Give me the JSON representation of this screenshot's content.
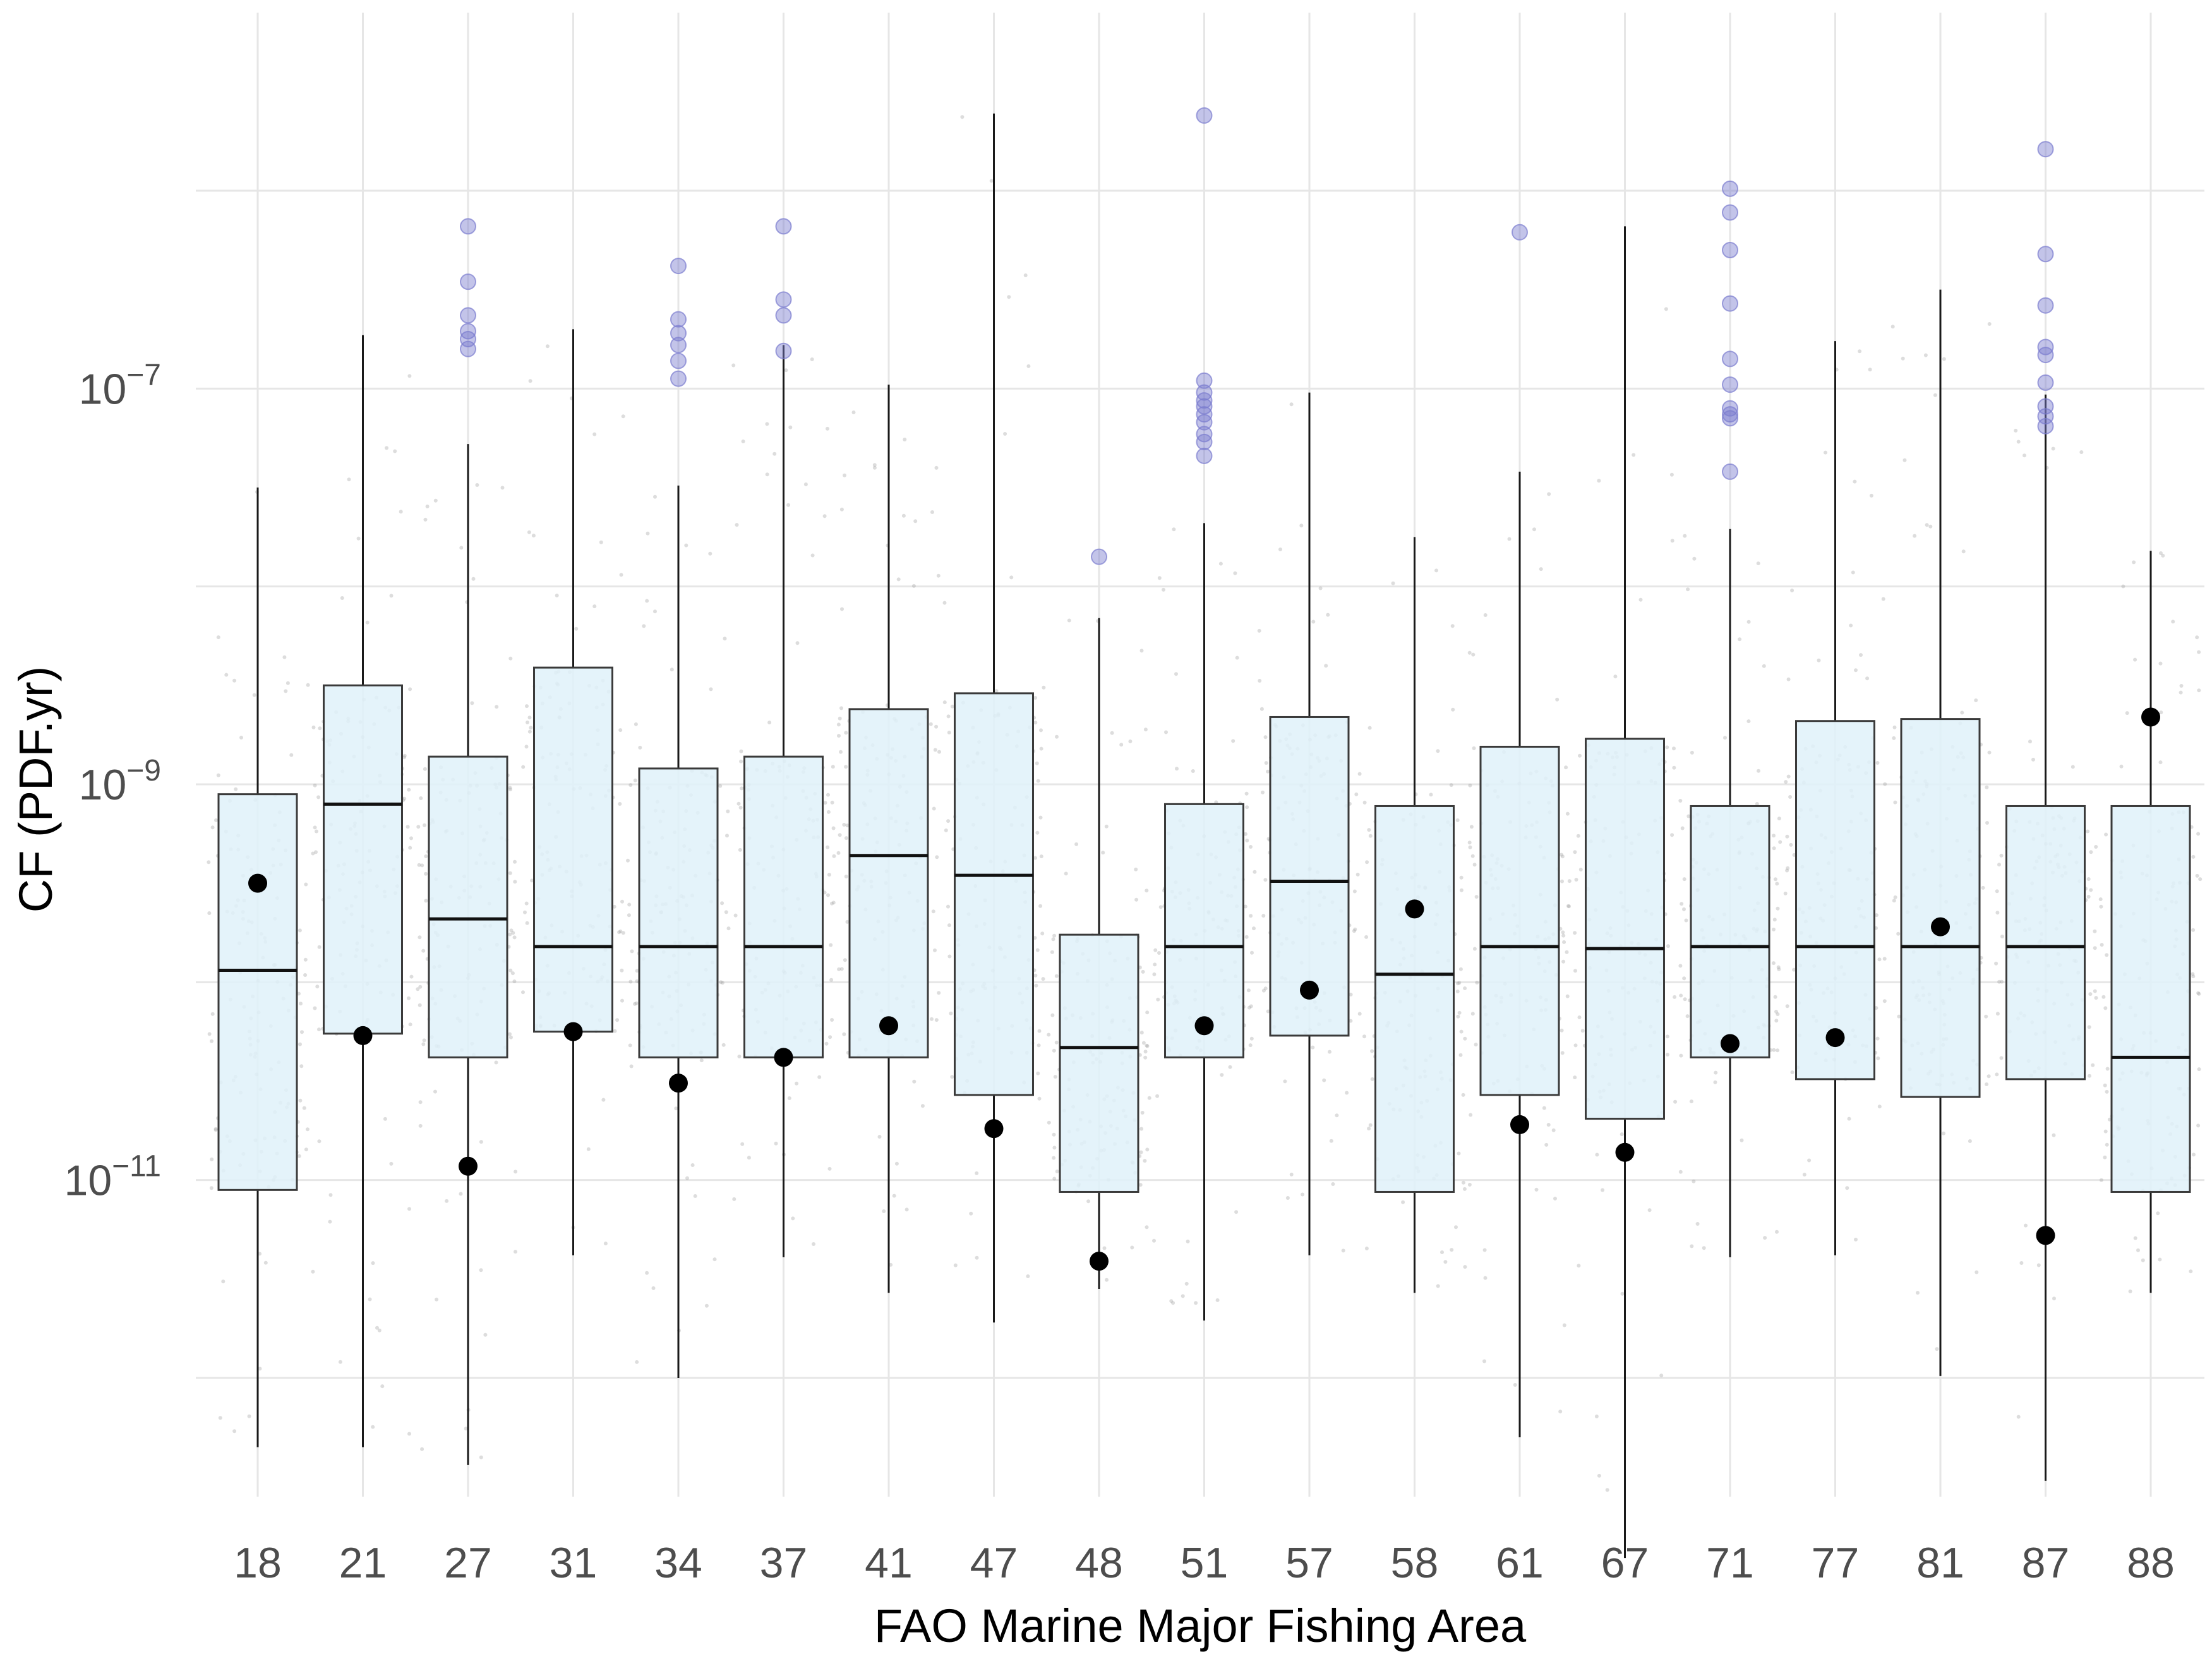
{
  "chart_data": {
    "type": "boxplot",
    "title": "",
    "xlabel": "FAO Marine Major Fishing Area",
    "ylabel": "CF (PDF.yr)",
    "y_scale": "log10",
    "ylim_log10": [
      -12.6,
      -5.1
    ],
    "y_ticks": [
      {
        "exp": -7,
        "base": "10",
        "sup": "−7"
      },
      {
        "exp": -9,
        "base": "10",
        "sup": "−9"
      },
      {
        "exp": -11,
        "base": "10",
        "sup": "−11"
      }
    ],
    "categories": [
      "18",
      "21",
      "27",
      "31",
      "34",
      "37",
      "41",
      "47",
      "48",
      "51",
      "57",
      "58",
      "61",
      "67",
      "71",
      "77",
      "81",
      "87",
      "88"
    ],
    "boxes": [
      {
        "area": "18",
        "whisker_low": -12.35,
        "q1": -11.05,
        "median": -9.94,
        "q3": -9.05,
        "whisker_high": -7.5,
        "mean": -9.5,
        "outliers": []
      },
      {
        "area": "21",
        "whisker_low": -12.35,
        "q1": -10.26,
        "median": -9.1,
        "q3": -8.5,
        "whisker_high": -6.73,
        "mean": -10.27,
        "outliers": []
      },
      {
        "area": "27",
        "whisker_low": -12.44,
        "q1": -10.38,
        "median": -9.68,
        "q3": -8.86,
        "whisker_high": -7.28,
        "mean": -10.93,
        "outliers": [
          -6.18,
          -6.46,
          -6.63,
          -6.71,
          -6.75,
          -6.8
        ]
      },
      {
        "area": "31",
        "whisker_low": -11.38,
        "q1": -10.25,
        "median": -9.82,
        "q3": -8.41,
        "whisker_high": -6.7,
        "mean": -10.25,
        "outliers": []
      },
      {
        "area": "34",
        "whisker_low": -12.0,
        "q1": -10.38,
        "median": -9.82,
        "q3": -8.92,
        "whisker_high": -7.49,
        "mean": -10.51,
        "outliers": [
          -6.38,
          -6.65,
          -6.72,
          -6.78,
          -6.86,
          -6.95
        ]
      },
      {
        "area": "37",
        "whisker_low": -11.39,
        "q1": -10.38,
        "median": -9.82,
        "q3": -8.86,
        "whisker_high": -6.78,
        "mean": -10.38,
        "outliers": [
          -6.18,
          -6.55,
          -6.63,
          -6.81
        ]
      },
      {
        "area": "41",
        "whisker_low": -11.57,
        "q1": -10.38,
        "median": -9.36,
        "q3": -8.62,
        "whisker_high": -6.98,
        "mean": -10.22,
        "outliers": []
      },
      {
        "area": "47",
        "whisker_low": -11.72,
        "q1": -10.57,
        "median": -9.46,
        "q3": -8.54,
        "whisker_high": -5.61,
        "mean": -10.74,
        "outliers": []
      },
      {
        "area": "48",
        "whisker_low": -11.55,
        "q1": -11.06,
        "median": -10.33,
        "q3": -9.76,
        "whisker_high": -8.16,
        "mean": -11.41,
        "outliers": [
          -7.85
        ]
      },
      {
        "area": "51",
        "whisker_low": -11.71,
        "q1": -10.38,
        "median": -9.82,
        "q3": -9.1,
        "whisker_high": -7.68,
        "mean": -10.22,
        "outliers": [
          -5.62,
          -6.96,
          -7.02,
          -7.06,
          -7.09,
          -7.13,
          -7.17,
          -7.23,
          -7.27,
          -7.34
        ]
      },
      {
        "area": "57",
        "whisker_low": -11.38,
        "q1": -10.27,
        "median": -9.49,
        "q3": -8.66,
        "whisker_high": -7.02,
        "mean": -10.04,
        "outliers": []
      },
      {
        "area": "58",
        "whisker_low": -11.57,
        "q1": -11.06,
        "median": -9.96,
        "q3": -9.11,
        "whisker_high": -7.75,
        "mean": -9.63,
        "outliers": []
      },
      {
        "area": "61",
        "whisker_low": -12.3,
        "q1": -10.57,
        "median": -9.82,
        "q3": -8.81,
        "whisker_high": -7.42,
        "mean": -10.72,
        "outliers": [
          -6.21
        ]
      },
      {
        "area": "67",
        "whisker_low": -12.91,
        "q1": -10.69,
        "median": -9.83,
        "q3": -8.77,
        "whisker_high": -6.18,
        "mean": -10.86,
        "outliers": []
      },
      {
        "area": "71",
        "whisker_low": -11.39,
        "q1": -10.38,
        "median": -9.82,
        "q3": -9.11,
        "whisker_high": -7.71,
        "mean": -10.31,
        "outliers": [
          -5.99,
          -6.11,
          -6.3,
          -6.57,
          -6.85,
          -6.98,
          -7.1,
          -7.13,
          -7.15,
          -7.42
        ]
      },
      {
        "area": "77",
        "whisker_low": -11.38,
        "q1": -10.49,
        "median": -9.82,
        "q3": -8.68,
        "whisker_high": -6.76,
        "mean": -10.28,
        "outliers": []
      },
      {
        "area": "81",
        "whisker_low": -11.99,
        "q1": -10.58,
        "median": -9.82,
        "q3": -8.67,
        "whisker_high": -6.5,
        "mean": -9.72,
        "outliers": []
      },
      {
        "area": "87",
        "whisker_low": -12.52,
        "q1": -10.49,
        "median": -9.82,
        "q3": -9.11,
        "whisker_high": -7.03,
        "mean": -11.28,
        "outliers": [
          -5.79,
          -6.32,
          -6.58,
          -6.79,
          -6.83,
          -6.97,
          -7.09,
          -7.14,
          -7.19
        ]
      },
      {
        "area": "88",
        "whisker_low": -11.57,
        "q1": -11.06,
        "median": -10.38,
        "q3": -9.11,
        "whisker_high": -7.82,
        "mean": -8.66,
        "outliers": []
      }
    ],
    "colors": {
      "box_fill": "#dff1f9",
      "box_stroke": "#3a3a3a",
      "whisker": "#1a1a1a",
      "median": "#111111",
      "mean_marker": "#000000",
      "outlier": "#7b7ccf",
      "jitter": "#9e9e9e",
      "grid": "#e6e6e6",
      "background": "#ffffff"
    },
    "grid": true,
    "legend": "none"
  }
}
